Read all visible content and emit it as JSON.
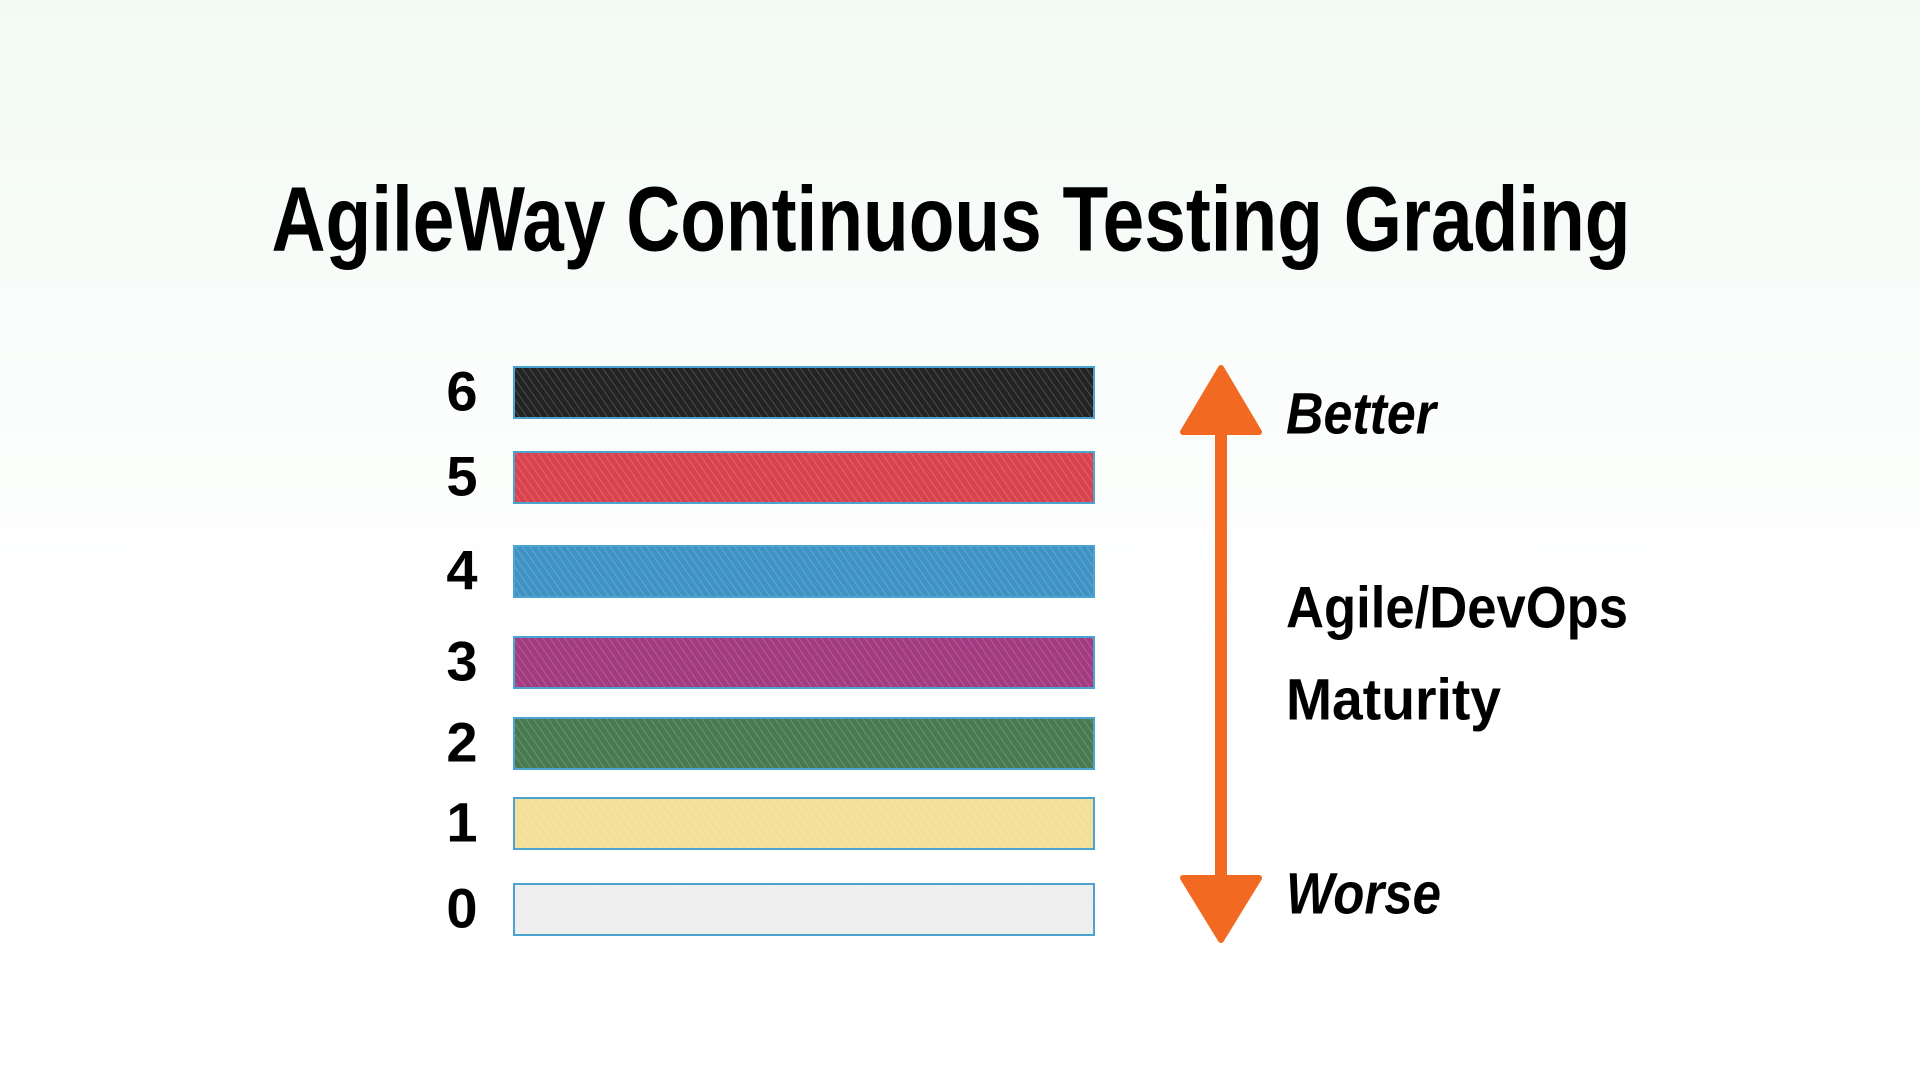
{
  "title": "AgileWay Continuous Testing Grading",
  "levels": [
    {
      "label": "6",
      "color": "#232323"
    },
    {
      "label": "5",
      "color": "#d9434e"
    },
    {
      "label": "4",
      "color": "#3f93c4"
    },
    {
      "label": "3",
      "color": "#a23b80"
    },
    {
      "label": "2",
      "color": "#497a4f"
    },
    {
      "label": "1",
      "color": "#f3df97"
    },
    {
      "label": "0",
      "color": "#eeeeee"
    }
  ],
  "scale": {
    "top": "Better",
    "middle": [
      "Agile/DevOps",
      "Maturity"
    ],
    "bottom": "Worse",
    "arrow_color": "#f26a21"
  }
}
